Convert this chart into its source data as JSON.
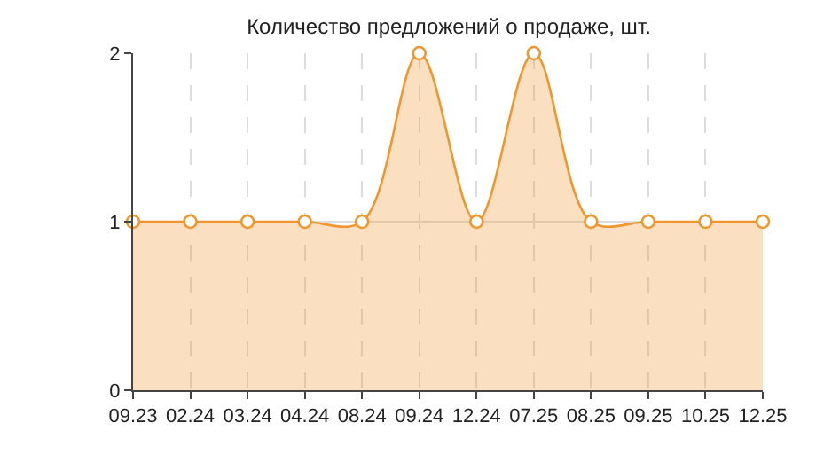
{
  "chart_data": {
    "type": "area",
    "title": "Количество предложений о продаже, шт.",
    "categories": [
      "09.23",
      "02.24",
      "03.24",
      "04.24",
      "08.24",
      "09.24",
      "12.24",
      "07.25",
      "08.25",
      "09.25",
      "10.25",
      "12.25"
    ],
    "series": [
      {
        "color": "#f0962e",
        "values": [
          1,
          1,
          1,
          1,
          1,
          2,
          1,
          2,
          1,
          1,
          1,
          1
        ]
      }
    ],
    "ylim": [
      0,
      2
    ],
    "yticks": [
      0,
      1,
      2
    ],
    "grid": true,
    "marker": "circle",
    "line_style": "solid"
  }
}
